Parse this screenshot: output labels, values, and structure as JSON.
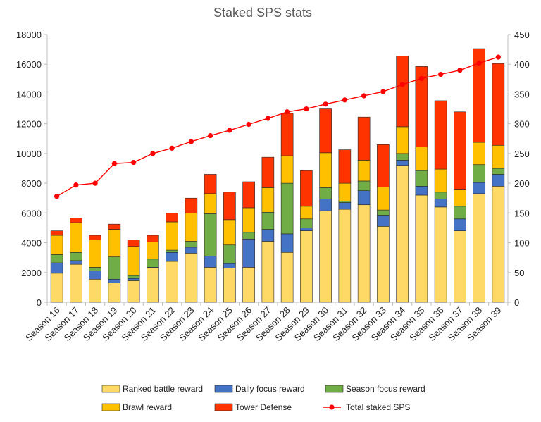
{
  "chart_data": {
    "type": "bar",
    "title": "Staked SPS stats",
    "categories": [
      "Season 16",
      "Season 17",
      "Season 18",
      "Season 19",
      "Season 20",
      "Season 21",
      "Season 22",
      "Season 23",
      "Season 24",
      "Season 25",
      "Season 26",
      "Season 27",
      "Season 28",
      "Season 29",
      "Season 30",
      "Season 31",
      "Season 32",
      "Season 33",
      "Season 34",
      "Season 35",
      "Season 36",
      "Season 37",
      "Season 38",
      "Season 39"
    ],
    "stacked": true,
    "ylim": [
      0,
      18000
    ],
    "y_ticks": [
      "0",
      "2000",
      "4000",
      "6000",
      "8000",
      "10000",
      "12000",
      "14000",
      "16000",
      "18000"
    ],
    "y2lim": [
      0,
      450
    ],
    "y2_ticks": [
      "0",
      "50",
      "100",
      "150",
      "200",
      "250",
      "300",
      "350",
      "400",
      "450"
    ],
    "grid": false,
    "legend_position": "bottom",
    "series": [
      {
        "name": "Ranked battle reward",
        "color": "#FFD966",
        "axis": "left",
        "values": [
          1950,
          2550,
          1550,
          1300,
          1450,
          2300,
          2750,
          3300,
          2350,
          2300,
          2350,
          4100,
          3350,
          4800,
          6150,
          6250,
          6550,
          5100,
          9200,
          7200,
          6400,
          4800,
          7300,
          7800
        ]
      },
      {
        "name": "Daily focus reward",
        "color": "#4472C4",
        "axis": "left",
        "values": [
          700,
          250,
          550,
          250,
          150,
          50,
          600,
          400,
          750,
          300,
          1900,
          800,
          1250,
          200,
          800,
          450,
          950,
          750,
          350,
          600,
          550,
          800,
          750,
          800
        ]
      },
      {
        "name": "Season focus reward",
        "color": "#70AD47",
        "axis": "left",
        "values": [
          550,
          550,
          250,
          1500,
          200,
          550,
          150,
          400,
          2850,
          1250,
          450,
          1150,
          3400,
          600,
          750,
          100,
          650,
          350,
          450,
          1050,
          450,
          850,
          1200,
          400
        ]
      },
      {
        "name": "Brawl reward",
        "color": "#FFC000",
        "axis": "left",
        "values": [
          1300,
          2000,
          1850,
          1850,
          1950,
          1150,
          1900,
          1900,
          1350,
          1700,
          1650,
          1650,
          1850,
          850,
          2350,
          1200,
          1400,
          1550,
          1800,
          1600,
          1550,
          1150,
          1500,
          1550
        ]
      },
      {
        "name": "Tower Defense",
        "color": "#FF3300",
        "axis": "left",
        "values": [
          300,
          300,
          300,
          350,
          450,
          450,
          600,
          1000,
          1300,
          1850,
          1750,
          2050,
          2850,
          2400,
          2950,
          2250,
          2900,
          2850,
          4750,
          5400,
          4600,
          5200,
          6300,
          5500
        ]
      },
      {
        "name": "Total staked SPS",
        "color": "#FF0000",
        "axis": "right",
        "type": "line",
        "values": [
          178,
          197,
          200,
          233,
          235,
          250,
          259,
          270,
          280,
          289,
          299,
          309,
          320,
          325,
          333,
          340,
          347,
          354,
          366,
          376,
          383,
          390,
          402,
          412
        ]
      }
    ]
  }
}
